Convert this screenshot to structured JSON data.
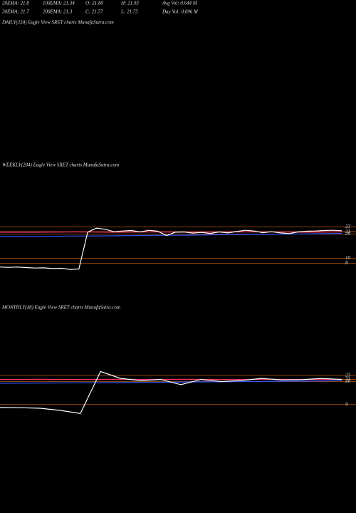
{
  "header": {
    "row1": [
      "20EMA: 21.8",
      "100EMA: 21.34",
      "O: 21.80",
      "H: 21.93",
      "Avg Vol: 0.644 M"
    ],
    "row2": [
      "30EMA: 21.7",
      "200EMA: 21.3",
      "C: 21.77",
      "L: 21.75",
      "Day Vol: 0.096 M"
    ]
  },
  "chart_data": [
    {
      "type": "line",
      "title": "DAILY(230) Eagle  View  SRET charts MunafaSutra.com"
    },
    {
      "type": "line",
      "title": "WEEKLY(284) Eagle  View  SRET charts MunafaSutra.com",
      "ylim": [
        -1,
        49
      ],
      "yticks": [
        23,
        21,
        20,
        10,
        8
      ],
      "grid": true,
      "series": [
        {
          "color": "#3355ff",
          "values": [
            19.0,
            19.1,
            19.2,
            19.3,
            19.5,
            19.6,
            19.8,
            19.9,
            20.1,
            20.3
          ]
        },
        {
          "color": "#ff3366",
          "values": [
            20.8,
            20.8,
            20.9,
            20.8,
            20.9,
            20.8,
            20.9,
            20.9,
            20.8,
            20.9
          ]
        },
        {
          "color": "#ffffff",
          "values": [
            6.4,
            6.3,
            6.4,
            6.2,
            6.0,
            6.1,
            5.8,
            5.9,
            5.4,
            5.6,
            20.8,
            22.5,
            22.0,
            21.0,
            21.3,
            21.5,
            20.9,
            21.6,
            21.2,
            19.4,
            20.8,
            20.9,
            20.4,
            20.7,
            20.3,
            20.9,
            20.5,
            21.1,
            21.6,
            21.3,
            20.6,
            21.0,
            20.5,
            20.2,
            20.9,
            21.2,
            21.3,
            21.5,
            21.6,
            21.4
          ]
        }
      ]
    },
    {
      "type": "line",
      "title": "MONTHLY(48) Eagle  View  SRET charts MunafaSutra.com",
      "ylim": [
        -2,
        56
      ],
      "yticks": [
        23,
        21,
        20,
        9
      ],
      "grid": true,
      "series": [
        {
          "color": "#3355ff",
          "values": [
            19.2,
            19.3,
            19.4,
            19.5,
            19.6,
            19.8,
            19.9,
            20.1,
            20.2,
            20.4
          ]
        },
        {
          "color": "#ff3366",
          "values": [
            21.0,
            21.1,
            21.0,
            21.1,
            21.0,
            21.1,
            21.0,
            21.1,
            21.0,
            21.1
          ]
        },
        {
          "color": "#ffffff",
          "values": [
            7.6,
            7.5,
            7.2,
            6.2,
            4.7,
            24.8,
            21.5,
            20.5,
            21.0,
            18.5,
            21.0,
            20.0,
            20.5,
            21.5,
            20.8,
            20.9,
            21.5,
            21.0
          ]
        }
      ]
    }
  ]
}
